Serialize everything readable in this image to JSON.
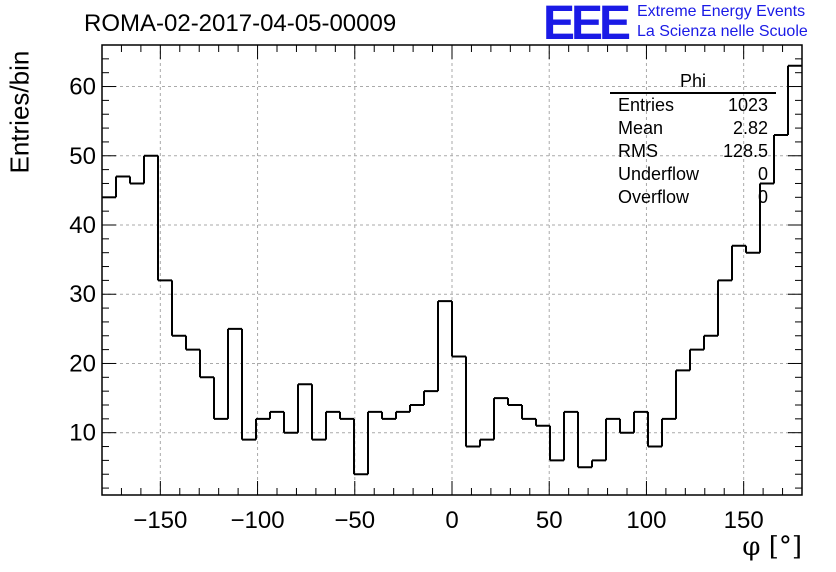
{
  "chart_data": {
    "type": "bar",
    "title": "ROMA-02-2017-04-05-00009",
    "xlabel": "φ [°]",
    "ylabel": "Entries/bin",
    "xlim": [
      -180,
      180
    ],
    "ylim": [
      1,
      66
    ],
    "xticks": [
      -150,
      -100,
      -50,
      0,
      50,
      100,
      150
    ],
    "yticks": [
      10,
      20,
      30,
      40,
      50,
      60
    ],
    "grid": true,
    "bin_width": 7.2,
    "bin_edges_start": -180,
    "values": [
      44,
      47,
      46,
      50,
      32,
      24,
      22,
      18,
      12,
      25,
      9,
      12,
      13,
      10,
      17,
      9,
      13,
      12,
      4,
      13,
      12,
      13,
      14,
      16,
      29,
      21,
      8,
      9,
      15,
      14,
      12,
      11,
      6,
      13,
      5,
      6,
      12,
      10,
      13,
      8,
      12,
      19,
      22,
      24,
      32,
      37,
      36,
      46,
      53,
      63
    ],
    "stats_box": {
      "title": "Phi",
      "rows": [
        {
          "label": "Entries",
          "value": "1023"
        },
        {
          "label": "Mean",
          "value": "2.82"
        },
        {
          "label": "RMS",
          "value": "128.5"
        },
        {
          "label": "Underflow",
          "value": "0"
        },
        {
          "label": "Overflow",
          "value": "0"
        }
      ]
    }
  },
  "logo": {
    "text": "EEE",
    "line1": "Extreme Energy Events",
    "line2": "La Scienza nelle Scuole",
    "color": "#1a1ae6"
  }
}
